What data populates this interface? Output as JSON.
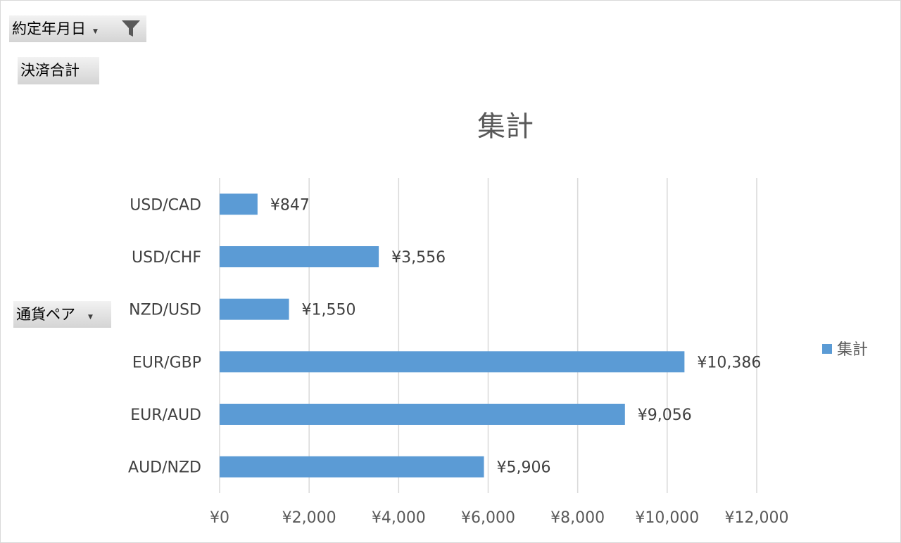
{
  "pivot": {
    "filter_field": "約定年月日",
    "value_field": "決済合計",
    "axis_field": "通貨ペア"
  },
  "colors": {
    "bar": "#5B9BD5",
    "grid": "#d9d9d9"
  },
  "chart_data": {
    "type": "bar",
    "orientation": "horizontal",
    "title": "集計",
    "categories": [
      "USD/CAD",
      "USD/CHF",
      "NZD/USD",
      "EUR/GBP",
      "EUR/AUD",
      "AUD/NZD"
    ],
    "series": [
      {
        "name": "集計",
        "values": [
          847,
          3556,
          1550,
          10386,
          9056,
          5906
        ],
        "labels": [
          "¥847",
          "¥3,556",
          "¥1,550",
          "¥10,386",
          "¥9,056",
          "¥5,906"
        ]
      }
    ],
    "xlim": [
      0,
      12000
    ],
    "xticks": [
      0,
      2000,
      4000,
      6000,
      8000,
      10000,
      12000
    ],
    "xtick_labels": [
      "¥0",
      "¥2,000",
      "¥4,000",
      "¥6,000",
      "¥8,000",
      "¥10,000",
      "¥12,000"
    ],
    "grid": true,
    "legend": "right"
  }
}
